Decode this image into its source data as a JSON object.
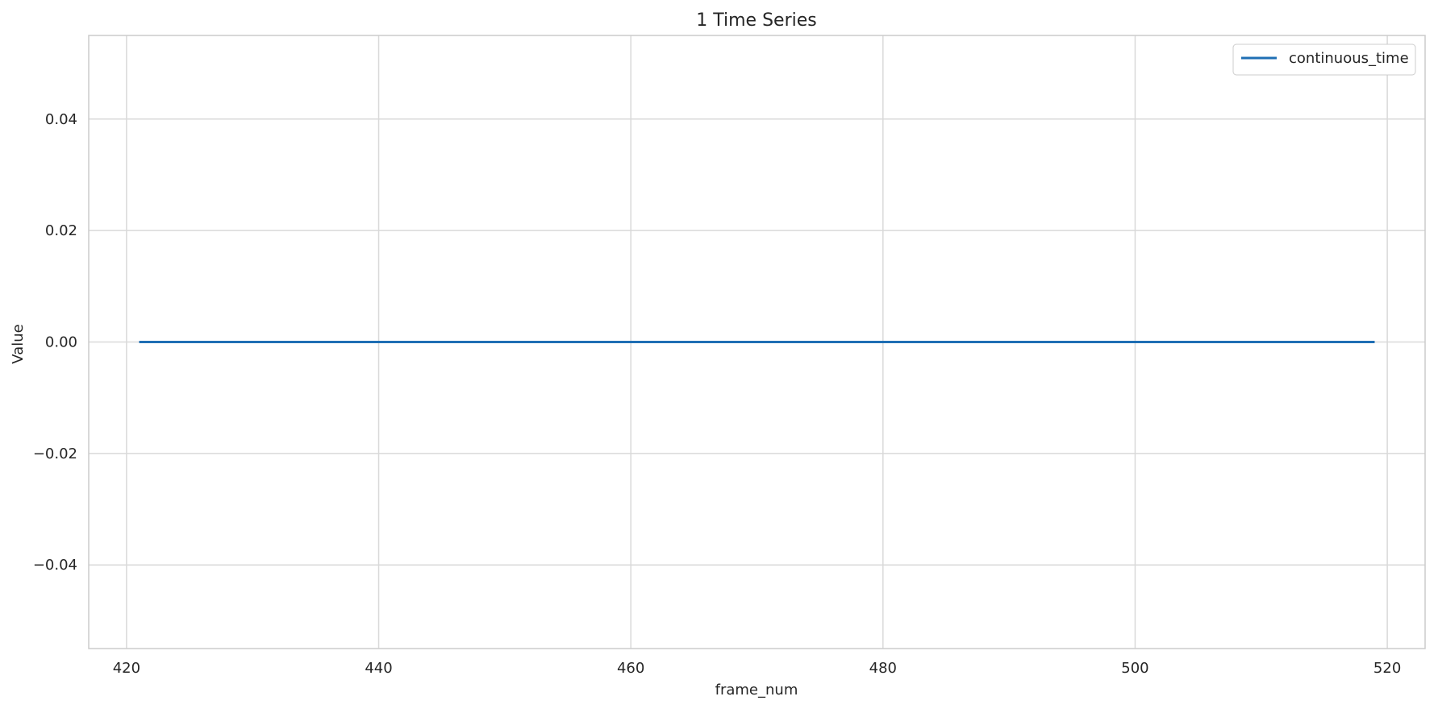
{
  "chart_data": {
    "type": "line",
    "title": "1 Time Series",
    "xlabel": "frame_num",
    "ylabel": "Value",
    "xlim": [
      417,
      523
    ],
    "ylim": [
      -0.055,
      0.055
    ],
    "xticks": [
      420,
      440,
      460,
      480,
      500,
      520
    ],
    "xtick_labels": [
      "420",
      "440",
      "460",
      "480",
      "500",
      "520"
    ],
    "yticks": [
      0.04,
      0.02,
      0.0,
      -0.02,
      -0.04
    ],
    "ytick_labels": [
      "0.04",
      "0.02",
      "0.00",
      "−0.02",
      "−0.04"
    ],
    "grid": true,
    "legend_position": "top-right",
    "series": [
      {
        "name": "continuous_time",
        "color": "#1f6fb4",
        "x": [
          421,
          519
        ],
        "y": [
          0.0,
          0.0
        ]
      }
    ]
  },
  "colors": {
    "grid": "#d9d9d9",
    "spine": "#cccccc",
    "text": "#262626",
    "background": "#ffffff"
  }
}
